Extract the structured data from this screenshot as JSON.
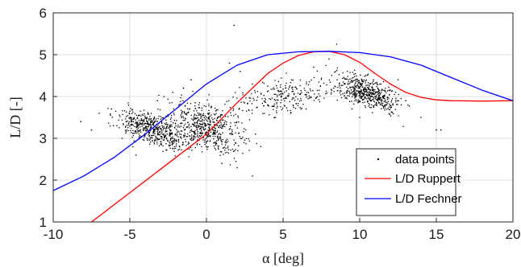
{
  "chart_data": {
    "type": "line",
    "title": "",
    "xlabel": "α [deg]",
    "ylabel": "L/D [-]",
    "xlim": [
      -10,
      20
    ],
    "ylim": [
      1,
      6
    ],
    "x_ticks": [
      -10,
      -5,
      0,
      5,
      10,
      15,
      20
    ],
    "y_ticks": [
      1,
      2,
      3,
      4,
      5,
      6
    ],
    "x_tick_labels": [
      "-10",
      "-5",
      "0",
      "5",
      "10",
      "15",
      "20"
    ],
    "y_tick_labels": [
      "1",
      "2",
      "3",
      "4",
      "5",
      "6"
    ],
    "grid": true,
    "legend_position": "bottom-right",
    "colors": {
      "data_points": "#000000",
      "ruppert": "#ff0000",
      "fechner": "#0000ff",
      "grid": "#dcdcdc"
    },
    "series": [
      {
        "name": "data points",
        "kind": "scatter",
        "clusters": [
          {
            "center": [
              -3.5,
              3.2
            ],
            "spread": [
              2.2,
              0.35
            ],
            "slope": -0.12
          },
          {
            "center": [
              0.0,
              3.25
            ],
            "spread": [
              2.5,
              0.55
            ],
            "slope": -0.1
          },
          {
            "center": [
              10.5,
              4.1
            ],
            "spread": [
              2.0,
              0.35
            ],
            "slope": -0.12
          },
          {
            "center": [
              5.0,
              4.0
            ],
            "spread": [
              3.5,
              0.4
            ],
            "slope": 0.08
          }
        ],
        "points": [
          [
            -8.2,
            3.4
          ],
          [
            -7.5,
            3.2
          ],
          [
            -7.0,
            3.6
          ],
          [
            -6.2,
            3.7
          ],
          [
            -5.5,
            3.0
          ],
          [
            -4.8,
            2.8
          ],
          [
            -4.6,
            2.6
          ],
          [
            -4.0,
            3.5
          ],
          [
            -3.2,
            3.9
          ],
          [
            -2.2,
            4.1
          ],
          [
            -1.5,
            4.2
          ],
          [
            -1.0,
            4.4
          ],
          [
            -0.5,
            3.8
          ],
          [
            0.5,
            3.1
          ],
          [
            1.0,
            2.4
          ],
          [
            2.0,
            2.3
          ],
          [
            3.0,
            2.1
          ],
          [
            3.2,
            3.1
          ],
          [
            1.5,
            4.8
          ],
          [
            1.8,
            5.7
          ],
          [
            2.2,
            4.6
          ],
          [
            3.0,
            4.3
          ],
          [
            4.0,
            3.8
          ],
          [
            4.5,
            3.5
          ],
          [
            5.5,
            3.6
          ],
          [
            6.5,
            3.7
          ],
          [
            7.0,
            4.7
          ],
          [
            8.0,
            4.9
          ],
          [
            8.5,
            5.25
          ],
          [
            9.2,
            4.6
          ],
          [
            9.5,
            3.7
          ],
          [
            10.0,
            3.5
          ],
          [
            11.0,
            3.8
          ],
          [
            11.5,
            4.0
          ],
          [
            12.0,
            4.3
          ],
          [
            12.5,
            4.4
          ],
          [
            13.0,
            3.9
          ],
          [
            14.0,
            3.5
          ],
          [
            15.0,
            3.2
          ],
          [
            15.3,
            3.2
          ]
        ]
      },
      {
        "name": "L/D Ruppert",
        "kind": "line",
        "x": [
          -7.5,
          -5,
          -2.5,
          0,
          2,
          4,
          5,
          6,
          7,
          8,
          9,
          10,
          11,
          12,
          13,
          14,
          15,
          16,
          18,
          20
        ],
        "y": [
          1.0,
          1.7,
          2.4,
          3.1,
          3.85,
          4.55,
          4.8,
          4.98,
          5.07,
          5.08,
          5.0,
          4.82,
          4.55,
          4.3,
          4.1,
          3.98,
          3.92,
          3.9,
          3.89,
          3.9
        ]
      },
      {
        "name": "L/D Fechner",
        "kind": "line",
        "x": [
          -10,
          -8,
          -6,
          -4,
          -2,
          0,
          2,
          4,
          6,
          8,
          10,
          12,
          14,
          16,
          18,
          20
        ],
        "y": [
          1.75,
          2.1,
          2.55,
          3.1,
          3.7,
          4.3,
          4.75,
          5.0,
          5.07,
          5.08,
          5.05,
          4.95,
          4.75,
          4.45,
          4.15,
          3.9
        ]
      }
    ]
  }
}
